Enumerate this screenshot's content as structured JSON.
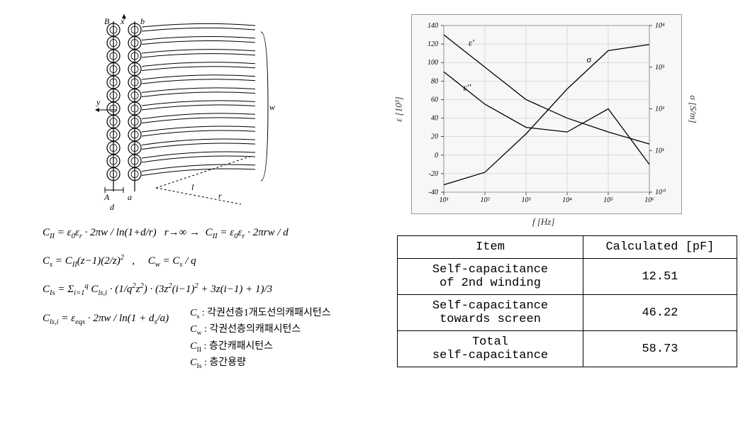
{
  "diagram": {
    "labels_top": [
      "B",
      "x",
      "b"
    ],
    "labels_side": [
      "y"
    ],
    "labels_bottom": [
      "A",
      "a"
    ],
    "dims": [
      "d",
      "a",
      "l",
      "r",
      "w"
    ],
    "coil_rows": 12,
    "coil_cols": 2,
    "wire_stroke": "#000000",
    "wire_fill": "#ffffff"
  },
  "equations": {
    "eq1": "C_{II} = ε₀ε_r · 2πw / ln(1+d/r)   r→∞ →   C_{II} = ε₀ε_r · 2πrw / d",
    "eq2": "C_s = C_{II}(z−1)(2/z)² ,      C_w = C_s / q",
    "eq3": "C_{Is} = Σ_{i=1}^{q} C_{ls,i} · (1/q²z²) · (3z²(i−1)² + 3z(i−1) + 1)/3",
    "eq4": "C_{ls,i} = ε_{eqs} · 2πw / ln(1 + d_s/a)"
  },
  "legend": {
    "Cs": "C_s : 각권선층1개도선의캐패시턴스",
    "Cw": "C_w : 각권선층의캐패시턴스",
    "CII": "C_{II} : 층간캐패시턴스",
    "CIs": "C_{Is} : 층간용량"
  },
  "chart": {
    "type": "line",
    "xaxis_label": "f [Hz]",
    "yaxis_left_label": "ε [10³]",
    "yaxis_right_label": "σ [S/m]",
    "xscale": "log",
    "yscale_right": "log",
    "xlim": [
      10.0,
      1000000.0
    ],
    "ylim_left": [
      -40,
      140
    ],
    "ylim_right": [
      1,
      10000.0
    ],
    "ytick_step_left": 20,
    "series_labels": [
      "ε'",
      "ε''",
      "σ"
    ],
    "line_color": "#000000",
    "line_width": 1,
    "grid_color": "#aaaaaa",
    "background_color": "#f7f7f7",
    "series": {
      "eps_prime": {
        "x": [
          10.0,
          100.0,
          1000.0,
          10000.0,
          100000.0,
          1000000.0
        ],
        "y": [
          130,
          95,
          60,
          40,
          25,
          12
        ]
      },
      "eps_dprime": {
        "x": [
          10.0,
          100.0,
          1000.0,
          10000.0,
          100000.0,
          1000000.0
        ],
        "y": [
          90,
          55,
          30,
          25,
          50,
          -10
        ]
      },
      "sigma": {
        "x": [
          10.0,
          100.0,
          1000.0,
          10000.0,
          100000.0,
          1000000.0
        ],
        "yr": [
          1.5,
          3,
          25,
          300,
          2500,
          3500
        ]
      }
    }
  },
  "table": {
    "columns": [
      "Item",
      "Calculated [pF]"
    ],
    "rows": [
      [
        "Self-capacitance\nof 2nd winding",
        "12.51"
      ],
      [
        "Self-capacitance\ntowards screen",
        "46.22"
      ],
      [
        "Total\nself-capacitance",
        "58.73"
      ]
    ]
  }
}
